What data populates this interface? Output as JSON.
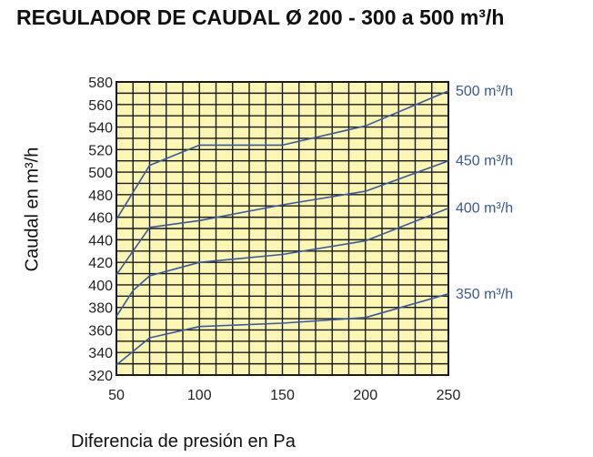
{
  "page": {
    "title": "REGULADOR DE CAUDAL Ø 200 - 300 a 500 m³/h"
  },
  "chart_data": {
    "type": "line",
    "title": "REGULADOR DE CAUDAL Ø 200 - 300 a 500 m³/h",
    "xlabel": "Diferencia de presión en Pa",
    "ylabel": "Caudal en m³/h",
    "xlim": [
      50,
      250
    ],
    "ylim": [
      320,
      580
    ],
    "xticks": [
      50,
      100,
      150,
      200,
      250
    ],
    "yticks": [
      320,
      340,
      360,
      380,
      400,
      420,
      440,
      460,
      480,
      500,
      520,
      540,
      560,
      580
    ],
    "grid": true,
    "background_color": "#fbf6b4",
    "grid_color": "#1a1a1a",
    "line_color": "#3a5a9c",
    "label_color": "#3a5a9c",
    "series": [
      {
        "name": "500 m³/h",
        "x": [
          50,
          70,
          100,
          150,
          200,
          250
        ],
        "y": [
          458,
          506,
          524,
          524,
          541,
          572
        ]
      },
      {
        "name": "450 m³/h",
        "x": [
          50,
          70,
          100,
          150,
          200,
          250
        ],
        "y": [
          409,
          451,
          457,
          471,
          483,
          510
        ]
      },
      {
        "name": "400 m³/h",
        "x": [
          50,
          60,
          70,
          100,
          150,
          200,
          250
        ],
        "y": [
          372,
          395,
          408,
          420,
          427,
          439,
          468
        ]
      },
      {
        "name": "350 m³/h",
        "x": [
          50,
          70,
          100,
          150,
          200,
          250
        ],
        "y": [
          329,
          353,
          363,
          366,
          371,
          392
        ]
      }
    ]
  }
}
